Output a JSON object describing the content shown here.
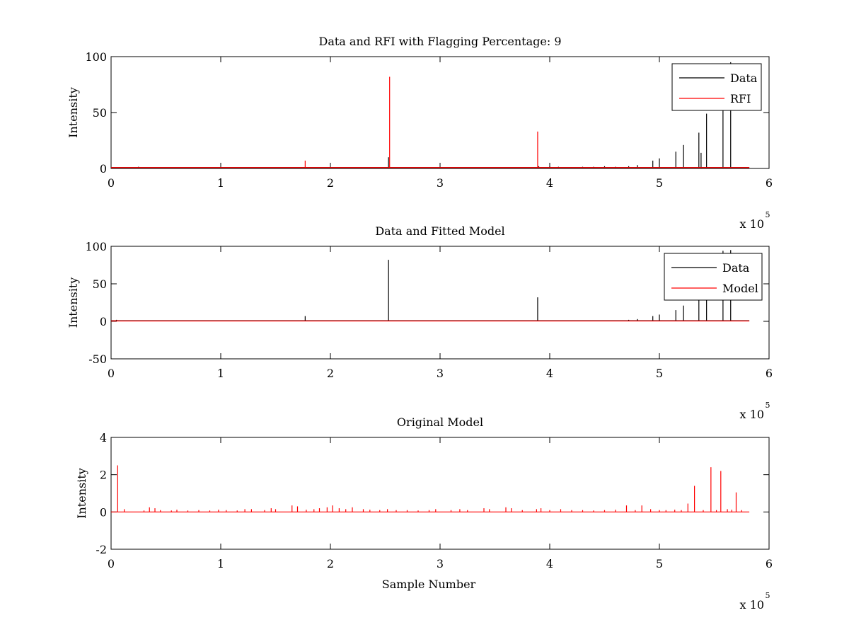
{
  "chart_data": [
    {
      "type": "line",
      "title": "Data and RFI with Flagging Percentage: 9",
      "xlabel": "",
      "ylabel": "Intensity",
      "xlim": [
        0,
        600000
      ],
      "ylim": [
        0,
        100
      ],
      "xticks": [
        0,
        100000,
        200000,
        300000,
        400000,
        500000,
        600000
      ],
      "xtick_labels": [
        "0",
        "1",
        "2",
        "3",
        "4",
        "5",
        "6"
      ],
      "yticks": [
        0,
        50,
        100
      ],
      "ytick_labels": [
        "0",
        "50",
        "100"
      ],
      "x_exponent": {
        "prefix": "x 10",
        "power": "5"
      },
      "grid": false,
      "legend_position": "top-right",
      "series": [
        {
          "name": "Data",
          "color": "#000000",
          "baseline": 0.8,
          "x_end": 582000,
          "spikes": [
            [
              25000,
              1.5
            ],
            [
              253000,
              10
            ],
            [
              390000,
              2
            ],
            [
              400000,
              2
            ],
            [
              408000,
              1.5
            ],
            [
              420000,
              1
            ],
            [
              430000,
              1.5
            ],
            [
              440000,
              1.5
            ],
            [
              450000,
              2
            ],
            [
              460000,
              1.5
            ],
            [
              472000,
              2
            ],
            [
              480000,
              3
            ],
            [
              494000,
              7
            ],
            [
              500000,
              9
            ],
            [
              515000,
              15
            ],
            [
              522000,
              21
            ],
            [
              536000,
              32
            ],
            [
              538000,
              14
            ],
            [
              543000,
              49
            ],
            [
              558000,
              94
            ],
            [
              565000,
              95
            ]
          ]
        },
        {
          "name": "RFI",
          "color": "#ff0000",
          "baseline": 0.8,
          "x_end": 582000,
          "spikes": [
            [
              177000,
              7
            ],
            [
              240000,
              1
            ],
            [
              254000,
              82
            ],
            [
              258000,
              1
            ],
            [
              389000,
              33
            ]
          ]
        }
      ]
    },
    {
      "type": "line",
      "title": "Data and Fitted Model",
      "xlabel": "",
      "ylabel": "Intensity",
      "xlim": [
        0,
        600000
      ],
      "ylim": [
        -50,
        100
      ],
      "xticks": [
        0,
        100000,
        200000,
        300000,
        400000,
        500000,
        600000
      ],
      "xtick_labels": [
        "0",
        "1",
        "2",
        "3",
        "4",
        "5",
        "6"
      ],
      "yticks": [
        -50,
        0,
        50,
        100
      ],
      "ytick_labels": [
        "-50",
        "0",
        "50",
        "100"
      ],
      "x_exponent": {
        "prefix": "x 10",
        "power": "5"
      },
      "grid": false,
      "legend_position": "top-right",
      "series": [
        {
          "name": "Data",
          "color": "#000000",
          "baseline": 0.8,
          "x_end": 582000,
          "spikes": [
            [
              5000,
              2
            ],
            [
              177000,
              7
            ],
            [
              253000,
              82
            ],
            [
              389000,
              32
            ],
            [
              472000,
              2
            ],
            [
              480000,
              3
            ],
            [
              494000,
              7
            ],
            [
              500000,
              9
            ],
            [
              515000,
              15
            ],
            [
              522000,
              21
            ],
            [
              536000,
              32
            ],
            [
              543000,
              49
            ],
            [
              558000,
              94
            ],
            [
              565000,
              95
            ]
          ]
        },
        {
          "name": "Model",
          "color": "#ff0000",
          "baseline": 0.5,
          "x_end": 582000,
          "spikes": [
            [
              3000,
              1.5
            ],
            [
              6000,
              1.5
            ],
            [
              10000,
              1
            ]
          ]
        }
      ]
    },
    {
      "type": "line",
      "title": "Original Model",
      "xlabel": "Sample Number",
      "ylabel": "Intensity",
      "xlim": [
        0,
        600000
      ],
      "ylim": [
        -2,
        4
      ],
      "xticks": [
        0,
        100000,
        200000,
        300000,
        400000,
        500000,
        600000
      ],
      "xtick_labels": [
        "0",
        "1",
        "2",
        "3",
        "4",
        "5",
        "6"
      ],
      "yticks": [
        -2,
        0,
        2,
        4
      ],
      "ytick_labels": [
        "-2",
        "0",
        "2",
        "4"
      ],
      "x_exponent": {
        "prefix": "x 10",
        "power": "5"
      },
      "grid": false,
      "legend_position": "none",
      "series": [
        {
          "color": "#ff0000",
          "baseline": 0.0,
          "x_end": 582000,
          "spikes": [
            [
              6000,
              2.5
            ],
            [
              12000,
              0.15
            ],
            [
              30000,
              0.08
            ],
            [
              35000,
              0.25
            ],
            [
              40000,
              0.2
            ],
            [
              45000,
              0.1
            ],
            [
              55000,
              0.08
            ],
            [
              60000,
              0.12
            ],
            [
              70000,
              0.08
            ],
            [
              80000,
              0.1
            ],
            [
              90000,
              0.08
            ],
            [
              98000,
              0.12
            ],
            [
              105000,
              0.1
            ],
            [
              115000,
              0.08
            ],
            [
              122000,
              0.15
            ],
            [
              128000,
              0.15
            ],
            [
              140000,
              0.1
            ],
            [
              146000,
              0.2
            ],
            [
              150000,
              0.15
            ],
            [
              165000,
              0.35
            ],
            [
              170000,
              0.3
            ],
            [
              178000,
              0.12
            ],
            [
              185000,
              0.15
            ],
            [
              190000,
              0.2
            ],
            [
              197000,
              0.25
            ],
            [
              202000,
              0.35
            ],
            [
              208000,
              0.2
            ],
            [
              214000,
              0.15
            ],
            [
              220000,
              0.25
            ],
            [
              230000,
              0.15
            ],
            [
              236000,
              0.12
            ],
            [
              245000,
              0.1
            ],
            [
              252000,
              0.15
            ],
            [
              260000,
              0.1
            ],
            [
              270000,
              0.1
            ],
            [
              280000,
              0.08
            ],
            [
              290000,
              0.1
            ],
            [
              296000,
              0.15
            ],
            [
              310000,
              0.1
            ],
            [
              318000,
              0.15
            ],
            [
              325000,
              0.1
            ],
            [
              340000,
              0.2
            ],
            [
              345000,
              0.15
            ],
            [
              360000,
              0.25
            ],
            [
              365000,
              0.2
            ],
            [
              375000,
              0.1
            ],
            [
              388000,
              0.15
            ],
            [
              392000,
              0.2
            ],
            [
              400000,
              0.1
            ],
            [
              410000,
              0.15
            ],
            [
              420000,
              0.1
            ],
            [
              430000,
              0.1
            ],
            [
              440000,
              0.08
            ],
            [
              450000,
              0.1
            ],
            [
              460000,
              0.12
            ],
            [
              470000,
              0.35
            ],
            [
              478000,
              0.1
            ],
            [
              484000,
              0.35
            ],
            [
              492000,
              0.15
            ],
            [
              500000,
              0.1
            ],
            [
              506000,
              0.1
            ],
            [
              514000,
              0.12
            ],
            [
              520000,
              0.1
            ],
            [
              526000,
              0.45
            ],
            [
              532000,
              1.4
            ],
            [
              540000,
              0.1
            ],
            [
              547000,
              2.4
            ],
            [
              552000,
              0.1
            ],
            [
              556000,
              2.2
            ],
            [
              562000,
              0.15
            ],
            [
              566000,
              0.12
            ],
            [
              570000,
              1.05
            ],
            [
              575000,
              0.1
            ]
          ]
        }
      ]
    }
  ]
}
